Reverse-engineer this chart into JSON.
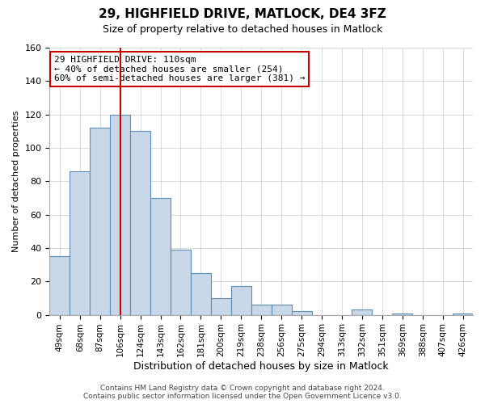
{
  "title": "29, HIGHFIELD DRIVE, MATLOCK, DE4 3FZ",
  "subtitle": "Size of property relative to detached houses in Matlock",
  "xlabel": "Distribution of detached houses by size in Matlock",
  "ylabel": "Number of detached properties",
  "bar_labels": [
    "49sqm",
    "68sqm",
    "87sqm",
    "106sqm",
    "124sqm",
    "143sqm",
    "162sqm",
    "181sqm",
    "200sqm",
    "219sqm",
    "238sqm",
    "256sqm",
    "275sqm",
    "294sqm",
    "313sqm",
    "332sqm",
    "351sqm",
    "369sqm",
    "388sqm",
    "407sqm",
    "426sqm"
  ],
  "bar_values": [
    35,
    86,
    112,
    120,
    110,
    70,
    39,
    25,
    10,
    17,
    6,
    6,
    2,
    0,
    0,
    3,
    0,
    1,
    0,
    0,
    1
  ],
  "bar_color": "#c8d8e8",
  "bar_edge_color": "#5b8db8",
  "vline_x_index": 3,
  "vline_color": "#cc0000",
  "ylim": [
    0,
    160
  ],
  "annotation_line1": "29 HIGHFIELD DRIVE: 110sqm",
  "annotation_line2": "← 40% of detached houses are smaller (254)",
  "annotation_line3": "60% of semi-detached houses are larger (381) →",
  "annotation_box_edge": "#cc0000",
  "footer_line1": "Contains HM Land Registry data © Crown copyright and database right 2024.",
  "footer_line2": "Contains public sector information licensed under the Open Government Licence v3.0.",
  "title_fontsize": 11,
  "subtitle_fontsize": 9,
  "ylabel_fontsize": 8,
  "xlabel_fontsize": 9,
  "tick_fontsize": 7.5,
  "footer_fontsize": 6.5
}
